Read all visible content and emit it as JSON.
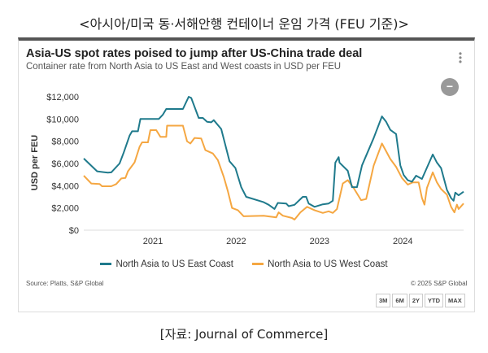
{
  "heading": "<아시아/미국 동·서해안행 컨테이너 운임 가격 (FEU 기준)>",
  "caption": "[자료: Journal of Commerce]",
  "source": "Source: Platts, S&P Global",
  "copyright": "© 2025 S&P Global",
  "range_buttons": [
    "3M",
    "6M",
    "2Y",
    "YTD",
    "MAX"
  ],
  "icons": {
    "more": "more-vertical-icon",
    "zoom_out": "minus-circle-icon"
  },
  "chart_data": {
    "type": "line",
    "title": "Asia-US spot rates poised to jump after US-China trade deal",
    "subtitle": "Container rate from North Asia to US East and West coasts in USD per FEU",
    "xlabel": "",
    "ylabel": "USD per FEU",
    "xlim": [
      2020.47,
      2025.03
    ],
    "ylim": [
      0,
      12000
    ],
    "yticks": [
      0,
      2000,
      4000,
      6000,
      8000,
      10000,
      12000
    ],
    "ytick_labels": [
      "$0",
      "$2,000",
      "$4,000",
      "$6,000",
      "$8,000",
      "$10,000",
      "$12,000"
    ],
    "xticks": [
      2021.3,
      2022.3,
      2023.3,
      2024.3
    ],
    "xtick_labels": [
      "2021",
      "2022",
      "2023",
      "2024"
    ],
    "grid": false,
    "legend": "bottom-center",
    "series": [
      {
        "name": "North Asia to US East Coast",
        "color": "#1f7a8c",
        "x": [
          2020.47,
          2020.63,
          2020.76,
          2020.8,
          2020.9,
          2020.95,
          2021.02,
          2021.05,
          2021.12,
          2021.15,
          2021.37,
          2021.42,
          2021.46,
          2021.66,
          2021.73,
          2021.76,
          2021.81,
          2021.85,
          2021.9,
          2021.95,
          2022.0,
          2022.03,
          2022.12,
          2022.22,
          2022.29,
          2022.36,
          2022.42,
          2022.63,
          2022.69,
          2022.76,
          2022.8,
          2022.9,
          2022.93,
          2023.0,
          2023.1,
          2023.14,
          2023.17,
          2023.24,
          2023.34,
          2023.41,
          2023.46,
          2023.49,
          2023.53,
          2023.54,
          2023.64,
          2023.69,
          2023.75,
          2023.81,
          2023.95,
          2024.05,
          2024.1,
          2024.15,
          2024.22,
          2024.27,
          2024.31,
          2024.36,
          2024.41,
          2024.46,
          2024.53,
          2024.66,
          2024.71,
          2024.76,
          2024.83,
          2024.88,
          2024.91,
          2024.93,
          2024.97,
          2025.03
        ],
        "y": [
          6450,
          5300,
          5170,
          5200,
          6000,
          7000,
          8500,
          8900,
          8900,
          10000,
          10000,
          10400,
          10900,
          10900,
          12000,
          11900,
          10900,
          10100,
          10100,
          9750,
          9700,
          9900,
          9100,
          6200,
          5600,
          3870,
          3000,
          2520,
          2280,
          1910,
          2450,
          2400,
          2160,
          2280,
          3000,
          3000,
          2400,
          2100,
          2330,
          2400,
          2650,
          6080,
          6570,
          6080,
          5340,
          3870,
          3870,
          5830,
          8280,
          10240,
          9750,
          9020,
          8650,
          5830,
          4970,
          4490,
          4360,
          4900,
          4610,
          6810,
          6080,
          5590,
          3630,
          2890,
          2650,
          3380,
          3140,
          3460
        ]
      },
      {
        "name": "North Asia to US West Coast",
        "color": "#f5a742",
        "x": [
          2020.47,
          2020.56,
          2020.66,
          2020.69,
          2020.8,
          2020.86,
          2020.92,
          2020.97,
          2021.0,
          2021.08,
          2021.14,
          2021.17,
          2021.24,
          2021.27,
          2021.34,
          2021.39,
          2021.46,
          2021.47,
          2021.66,
          2021.71,
          2021.75,
          2021.8,
          2021.88,
          2021.93,
          2022.02,
          2022.08,
          2022.15,
          2022.2,
          2022.25,
          2022.32,
          2022.39,
          2022.63,
          2022.78,
          2022.81,
          2022.86,
          2022.97,
          2023.0,
          2023.07,
          2023.15,
          2023.24,
          2023.34,
          2023.41,
          2023.46,
          2023.51,
          2023.58,
          2023.64,
          2023.71,
          2023.8,
          2023.86,
          2023.95,
          2024.05,
          2024.1,
          2024.15,
          2024.22,
          2024.29,
          2024.36,
          2024.42,
          2024.49,
          2024.53,
          2024.56,
          2024.59,
          2024.66,
          2024.71,
          2024.76,
          2024.83,
          2024.88,
          2024.92,
          2024.95,
          2024.97,
          2025.03
        ],
        "y": [
          4900,
          4200,
          4150,
          3950,
          3950,
          4150,
          4650,
          4700,
          5300,
          6100,
          7500,
          7900,
          7900,
          9000,
          9000,
          8400,
          8400,
          9400,
          9400,
          8000,
          7800,
          8300,
          8250,
          7200,
          6900,
          6300,
          4800,
          3500,
          2000,
          1800,
          1250,
          1300,
          1150,
          1600,
          1300,
          1100,
          950,
          1600,
          2100,
          1800,
          1550,
          1700,
          1550,
          1900,
          4200,
          4500,
          3800,
          2700,
          2800,
          5800,
          7800,
          7100,
          6400,
          5700,
          4700,
          4100,
          4300,
          4300,
          2900,
          2300,
          3800,
          5200,
          4300,
          3700,
          3200,
          2100,
          1600,
          2300,
          1900,
          2400
        ]
      }
    ]
  }
}
